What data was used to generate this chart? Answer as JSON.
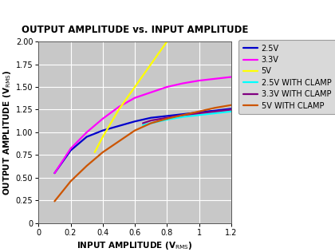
{
  "title": "OUTPUT AMPLITUDE vs. INPUT AMPLITUDE",
  "xlabel_rms": "INPUT AMPLITUDE (V",
  "ylabel_rms": "OUTPUT AMPLITUDE (V",
  "xlim": [
    0,
    1.2
  ],
  "ylim": [
    0,
    2.0
  ],
  "xticks": [
    0,
    0.2,
    0.4,
    0.6,
    0.8,
    1.0,
    1.2
  ],
  "xtick_labels": [
    "0",
    "0.2",
    "0.4",
    "0.6",
    "0.8",
    "1",
    "1.2"
  ],
  "yticks": [
    0,
    0.25,
    0.5,
    0.75,
    1.0,
    1.25,
    1.5,
    1.75,
    2.0
  ],
  "ytick_labels": [
    "0",
    "0.25",
    "0.50",
    "0.75",
    "1.00",
    "1.25",
    "1.50",
    "1.75",
    "2.00"
  ],
  "plot_bg": "#c8c8c8",
  "fig_bg": "#ffffff",
  "lines": [
    {
      "label": "2.5V",
      "color": "#0000cc",
      "x": [
        0.1,
        0.2,
        0.3,
        0.4,
        0.5,
        0.6,
        0.7,
        0.8,
        0.9,
        1.0,
        1.1,
        1.2
      ],
      "y": [
        0.55,
        0.8,
        0.95,
        1.02,
        1.07,
        1.12,
        1.16,
        1.18,
        1.2,
        1.22,
        1.24,
        1.26
      ]
    },
    {
      "label": "3.3V",
      "color": "#ff00ff",
      "x": [
        0.1,
        0.2,
        0.3,
        0.4,
        0.5,
        0.6,
        0.7,
        0.8,
        0.9,
        1.0,
        1.1,
        1.2
      ],
      "y": [
        0.55,
        0.82,
        1.0,
        1.15,
        1.28,
        1.38,
        1.44,
        1.5,
        1.54,
        1.57,
        1.59,
        1.61
      ]
    },
    {
      "label": "5V",
      "color": "#ffff00",
      "x": [
        0.35,
        0.4,
        0.5,
        0.6,
        0.7,
        0.8
      ],
      "y": [
        0.78,
        0.95,
        1.25,
        1.5,
        1.75,
        2.0
      ]
    },
    {
      "label": "2.5V WITH CLAMP",
      "color": "#00ffff",
      "x": [
        0.65,
        0.7,
        0.8,
        0.9,
        1.0,
        1.1,
        1.2
      ],
      "y": [
        1.08,
        1.1,
        1.14,
        1.17,
        1.19,
        1.21,
        1.23
      ]
    },
    {
      "label": "3.3V WITH CLAMP",
      "color": "#800080",
      "x": [
        0.65,
        0.7,
        0.8,
        0.9,
        1.0,
        1.1,
        1.2
      ],
      "y": [
        1.1,
        1.13,
        1.16,
        1.19,
        1.21,
        1.23,
        1.25
      ]
    },
    {
      "label": "5V WITH CLAMP",
      "color": "#cc5500",
      "x": [
        0.1,
        0.2,
        0.3,
        0.4,
        0.5,
        0.6,
        0.7,
        0.8,
        0.9,
        1.0,
        1.1,
        1.2
      ],
      "y": [
        0.24,
        0.46,
        0.63,
        0.78,
        0.9,
        1.02,
        1.1,
        1.15,
        1.19,
        1.23,
        1.27,
        1.3
      ]
    }
  ],
  "title_fontsize": 8.5,
  "axis_label_fontsize": 7.5,
  "tick_fontsize": 7.0,
  "legend_fontsize": 7.0,
  "legend_bg": "#d0d0d0",
  "legend_edge": "#888888"
}
